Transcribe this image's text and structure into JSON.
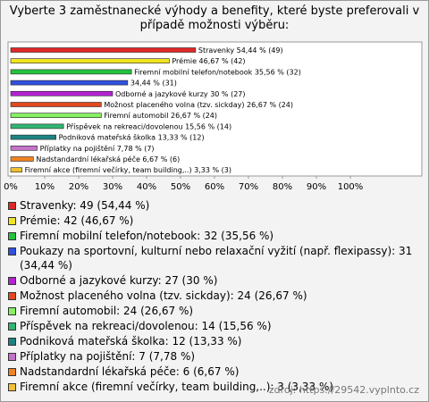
{
  "chart_data": {
    "type": "hbar",
    "title": "Vyberte 3 zaměstnanecké výhody a benefity, které byste preferovali v případě možnosti výběru:",
    "categories": [
      "Stravenky",
      "Prémie",
      "Firemní mobilní telefon/notebook",
      "Poukazy na sportovní, kulturní nebo relaxační vyžití (např. flexipassy)",
      "Odborné a jazykové kurzy",
      "Možnost placeného volna (tzv. sickday)",
      "Firemní automobil",
      "Příspěvek na rekreaci/dovolenou",
      "Podniková mateřská školka",
      "Příplatky na pojištění",
      "Nadstandardní lékařská péče",
      "Firemní akce (firemní večírky, team building,..)"
    ],
    "values": [
      54.44,
      46.67,
      35.56,
      34.44,
      30,
      26.67,
      26.67,
      15.56,
      13.33,
      7.78,
      6.67,
      3.33
    ],
    "value_labels": [
      "Stravenky 54,44 % (49)",
      "Prémie 46,67 % (42)",
      "Firemní mobilní telefon/notebook 35,56 % (32)",
      "34,44 % (31)",
      "Odborné a jazykové kurzy 30 % (27)",
      "Možnost placeného volna (tzv. sickday) 26,67 % (24)",
      "Firemní automobil 26,67 % (24)",
      "Příspěvek na rekreaci/dovolenou 15,56 % (14)",
      "Podniková mateřská školka 13,33 % (12)",
      "Příplatky na pojištění 7,78 % (7)",
      "Nadstandardní lékařská péče 6,67 % (6)",
      "Firemní akce (firemní večírky, team building,..) 3,33 % (3)"
    ],
    "legend": [
      "Stravenky: 49 (54,44 %)",
      "Prémie: 42 (46,67 %)",
      "Firemní mobilní telefon/notebook: 32 (35,56 %)",
      "Poukazy na sportovní, kulturní nebo relaxační vyžití (např. flexipassy): 31 (34,44 %)",
      "Odborné a jazykové kurzy: 27 (30 %)",
      "Možnost placeného volna (tzv. sickday): 24 (26,67 %)",
      "Firemní automobil: 24 (26,67 %)",
      "Příspěvek na rekreaci/dovolenou: 14 (15,56 %)",
      "Podniková mateřská školka: 12 (13,33 %)",
      "Příplatky na pojištění: 7 (7,78 %)",
      "Nadstandardní lékařská péče: 6 (6,67 %)",
      "Firemní akce (firemní večírky, team building,..): 3 (3,33 %)"
    ],
    "colors": [
      "#e02828",
      "#f2e422",
      "#22c43e",
      "#3050e0",
      "#b422d4",
      "#e2481e",
      "#86f062",
      "#34b474",
      "#1e8282",
      "#c474c8",
      "#f08422",
      "#f0c232"
    ],
    "xlim": [
      0,
      100
    ],
    "xticks": [
      {
        "value": 0,
        "label": "0%"
      },
      {
        "value": 10,
        "label": "10%"
      },
      {
        "value": 20,
        "label": "20%"
      },
      {
        "value": 30,
        "label": "30%"
      },
      {
        "value": 40,
        "label": "40%"
      },
      {
        "value": 50,
        "label": "50%"
      },
      {
        "value": 60,
        "label": "60%"
      },
      {
        "value": 70,
        "label": "70%"
      },
      {
        "value": 80,
        "label": "80%"
      },
      {
        "value": 90,
        "label": "90%"
      },
      {
        "value": 100,
        "label": "100%"
      }
    ],
    "source": "zdroj: https://29542.vyplnto.cz"
  }
}
